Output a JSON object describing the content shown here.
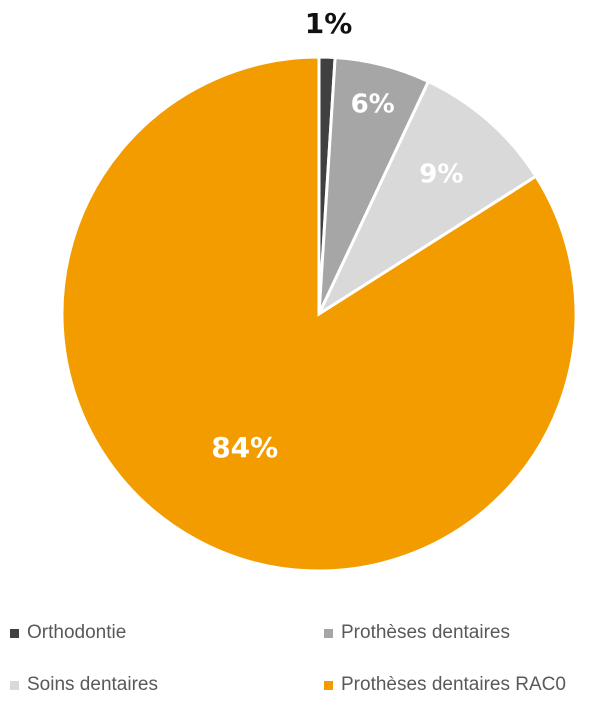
{
  "chart_data": {
    "type": "pie",
    "title": "",
    "slices": [
      {
        "name": "Orthodontie",
        "value": 1,
        "label": "1%",
        "color": "#404040",
        "label_color": "#111111"
      },
      {
        "name": "Prothèses dentaires",
        "value": 6,
        "label": "6%",
        "color": "#a6a6a6",
        "label_color": "#ffffff"
      },
      {
        "name": "Soins dentaires",
        "value": 9,
        "label": "9%",
        "color": "#d9d9d9",
        "label_color": "#ffffff"
      },
      {
        "name": "Prothèses dentaires RAC0",
        "value": 84,
        "label": "84%",
        "color": "#f39c00",
        "label_color": "#ffffff"
      }
    ],
    "legend_position": "bottom"
  },
  "legend": {
    "items": [
      {
        "label": "Orthodontie",
        "color": "#404040"
      },
      {
        "label": "Prothèses dentaires",
        "color": "#a6a6a6"
      },
      {
        "label": "Soins dentaires",
        "color": "#d9d9d9"
      },
      {
        "label": "Prothèses dentaires RAC0",
        "color": "#f39c00"
      }
    ]
  }
}
